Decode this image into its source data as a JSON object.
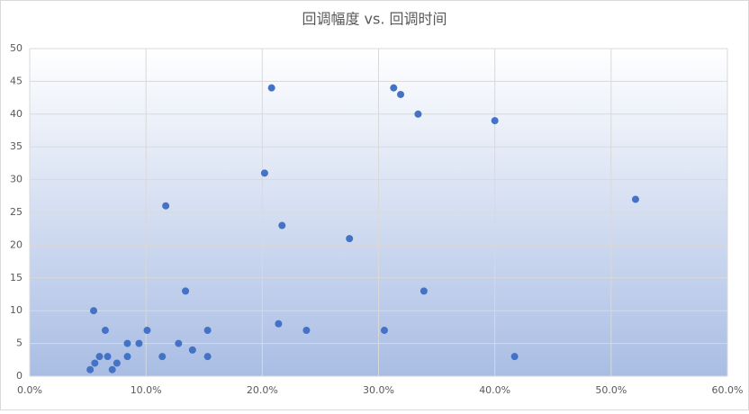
{
  "chart_data": {
    "type": "scatter",
    "title": "回调幅度 vs. 回调时间",
    "x": [
      5.2,
      5.6,
      5.5,
      6.0,
      6.5,
      6.7,
      7.1,
      7.5,
      8.4,
      8.4,
      9.4,
      10.1,
      11.4,
      11.7,
      12.8,
      13.4,
      14.0,
      15.3,
      15.3,
      20.2,
      20.8,
      21.4,
      21.7,
      23.8,
      27.5,
      30.5,
      31.3,
      31.9,
      33.4,
      33.9,
      40.0,
      41.7,
      52.1
    ],
    "values": [
      1,
      2,
      10,
      3,
      7,
      3,
      1,
      2,
      5,
      3,
      5,
      7,
      3,
      26,
      5,
      13,
      4,
      7,
      3,
      31,
      44,
      8,
      23,
      7,
      21,
      7,
      44,
      43,
      40,
      13,
      39,
      3,
      27
    ],
    "color": "#4472c4",
    "xlim": [
      0,
      60
    ],
    "xticks": [
      {
        "value": 0,
        "label": "0.0%"
      },
      {
        "value": 10,
        "label": "10.0%"
      },
      {
        "value": 20,
        "label": "20.0%"
      },
      {
        "value": 30,
        "label": "30.0%"
      },
      {
        "value": 40,
        "label": "40.0%"
      },
      {
        "value": 50,
        "label": "50.0%"
      },
      {
        "value": 60,
        "label": "60.0%"
      }
    ],
    "ylim": [
      0,
      50
    ],
    "yticks": [
      0,
      5,
      10,
      15,
      20,
      25,
      30,
      35,
      40,
      45,
      50
    ],
    "grid": true
  }
}
